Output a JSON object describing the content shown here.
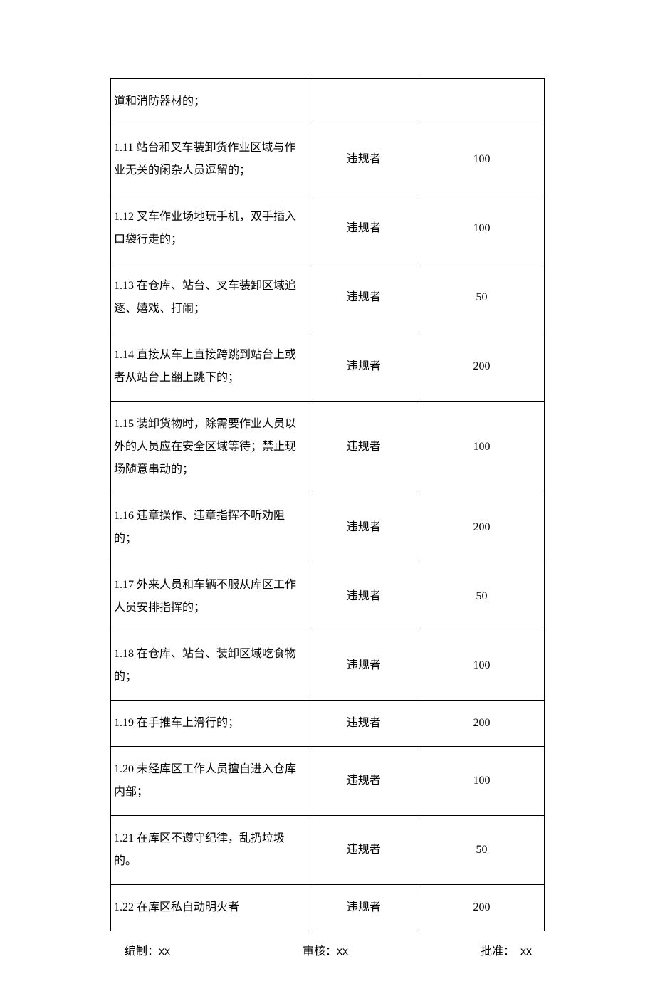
{
  "table": {
    "col_widths": [
      "41%",
      "23%",
      "26%"
    ],
    "border_color": "#000000",
    "background_color": "#ffffff",
    "font_size": 16,
    "rows": [
      {
        "desc": "道和消防器材的；",
        "target": "",
        "penalty": ""
      },
      {
        "desc": "1.11 站台和叉车装卸货作业区域与作业无关的闲杂人员逗留的；",
        "target": "违规者",
        "penalty": "100"
      },
      {
        "desc": "1.12 叉车作业场地玩手机，双手插入口袋行走的；",
        "target": "违规者",
        "penalty": "100"
      },
      {
        "desc": "1.13 在仓库、站台、叉车装卸区域追逐、嬉戏、打闹；",
        "target": "违规者",
        "penalty": "50"
      },
      {
        "desc": "1.14 直接从车上直接跨跳到站台上或者从站台上翻上跳下的；",
        "target": "违规者",
        "penalty": "200"
      },
      {
        "desc": "1.15 装卸货物时，除需要作业人员以外的人员应在安全区域等待；禁止现场随意串动的；",
        "target": "违规者",
        "penalty": "100"
      },
      {
        "desc": "1.16 违章操作、违章指挥不听劝阻的；",
        "target": "违规者",
        "penalty": "200"
      },
      {
        "desc": "1.17 外来人员和车辆不服从库区工作人员安排指挥的；",
        "target": "违规者",
        "penalty": "50"
      },
      {
        "desc": "1.18 在仓库、站台、装卸区域吃食物的；",
        "target": "违规者",
        "penalty": "100"
      },
      {
        "desc": "1.19 在手推车上滑行的；",
        "target": "违规者",
        "penalty": "200"
      },
      {
        "desc": "1.20 未经库区工作人员擅自进入仓库内部；",
        "target": "违规者",
        "penalty": "100"
      },
      {
        "desc": "1.21 在库区不遵守纪律，乱扔垃圾的。",
        "target": "违规者",
        "penalty": "50"
      },
      {
        "desc": "1.22 在库区私自动明火者",
        "target": "违规者",
        "penalty": "200"
      }
    ]
  },
  "footer": {
    "prepared_label": "编制：",
    "prepared_value": "xx",
    "reviewed_label": "审核：",
    "reviewed_value": "xx",
    "approved_label": "批准：",
    "approved_value": "xx"
  }
}
